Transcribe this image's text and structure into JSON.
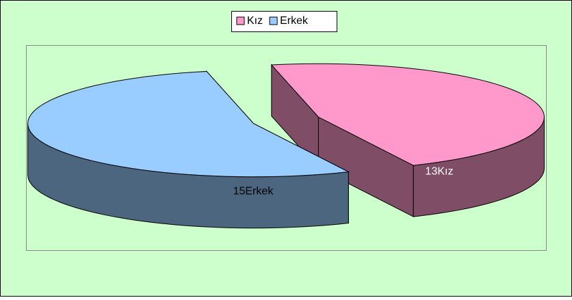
{
  "chart_data": {
    "type": "pie3d",
    "categories": [
      "Kız",
      "Erkek"
    ],
    "series": [
      {
        "values": [
          13,
          15
        ],
        "value_labels": [
          "13Kız",
          "15Erkek"
        ],
        "colors": [
          "#ff99cc",
          "#99ccff"
        ]
      }
    ],
    "legend": "top"
  }
}
